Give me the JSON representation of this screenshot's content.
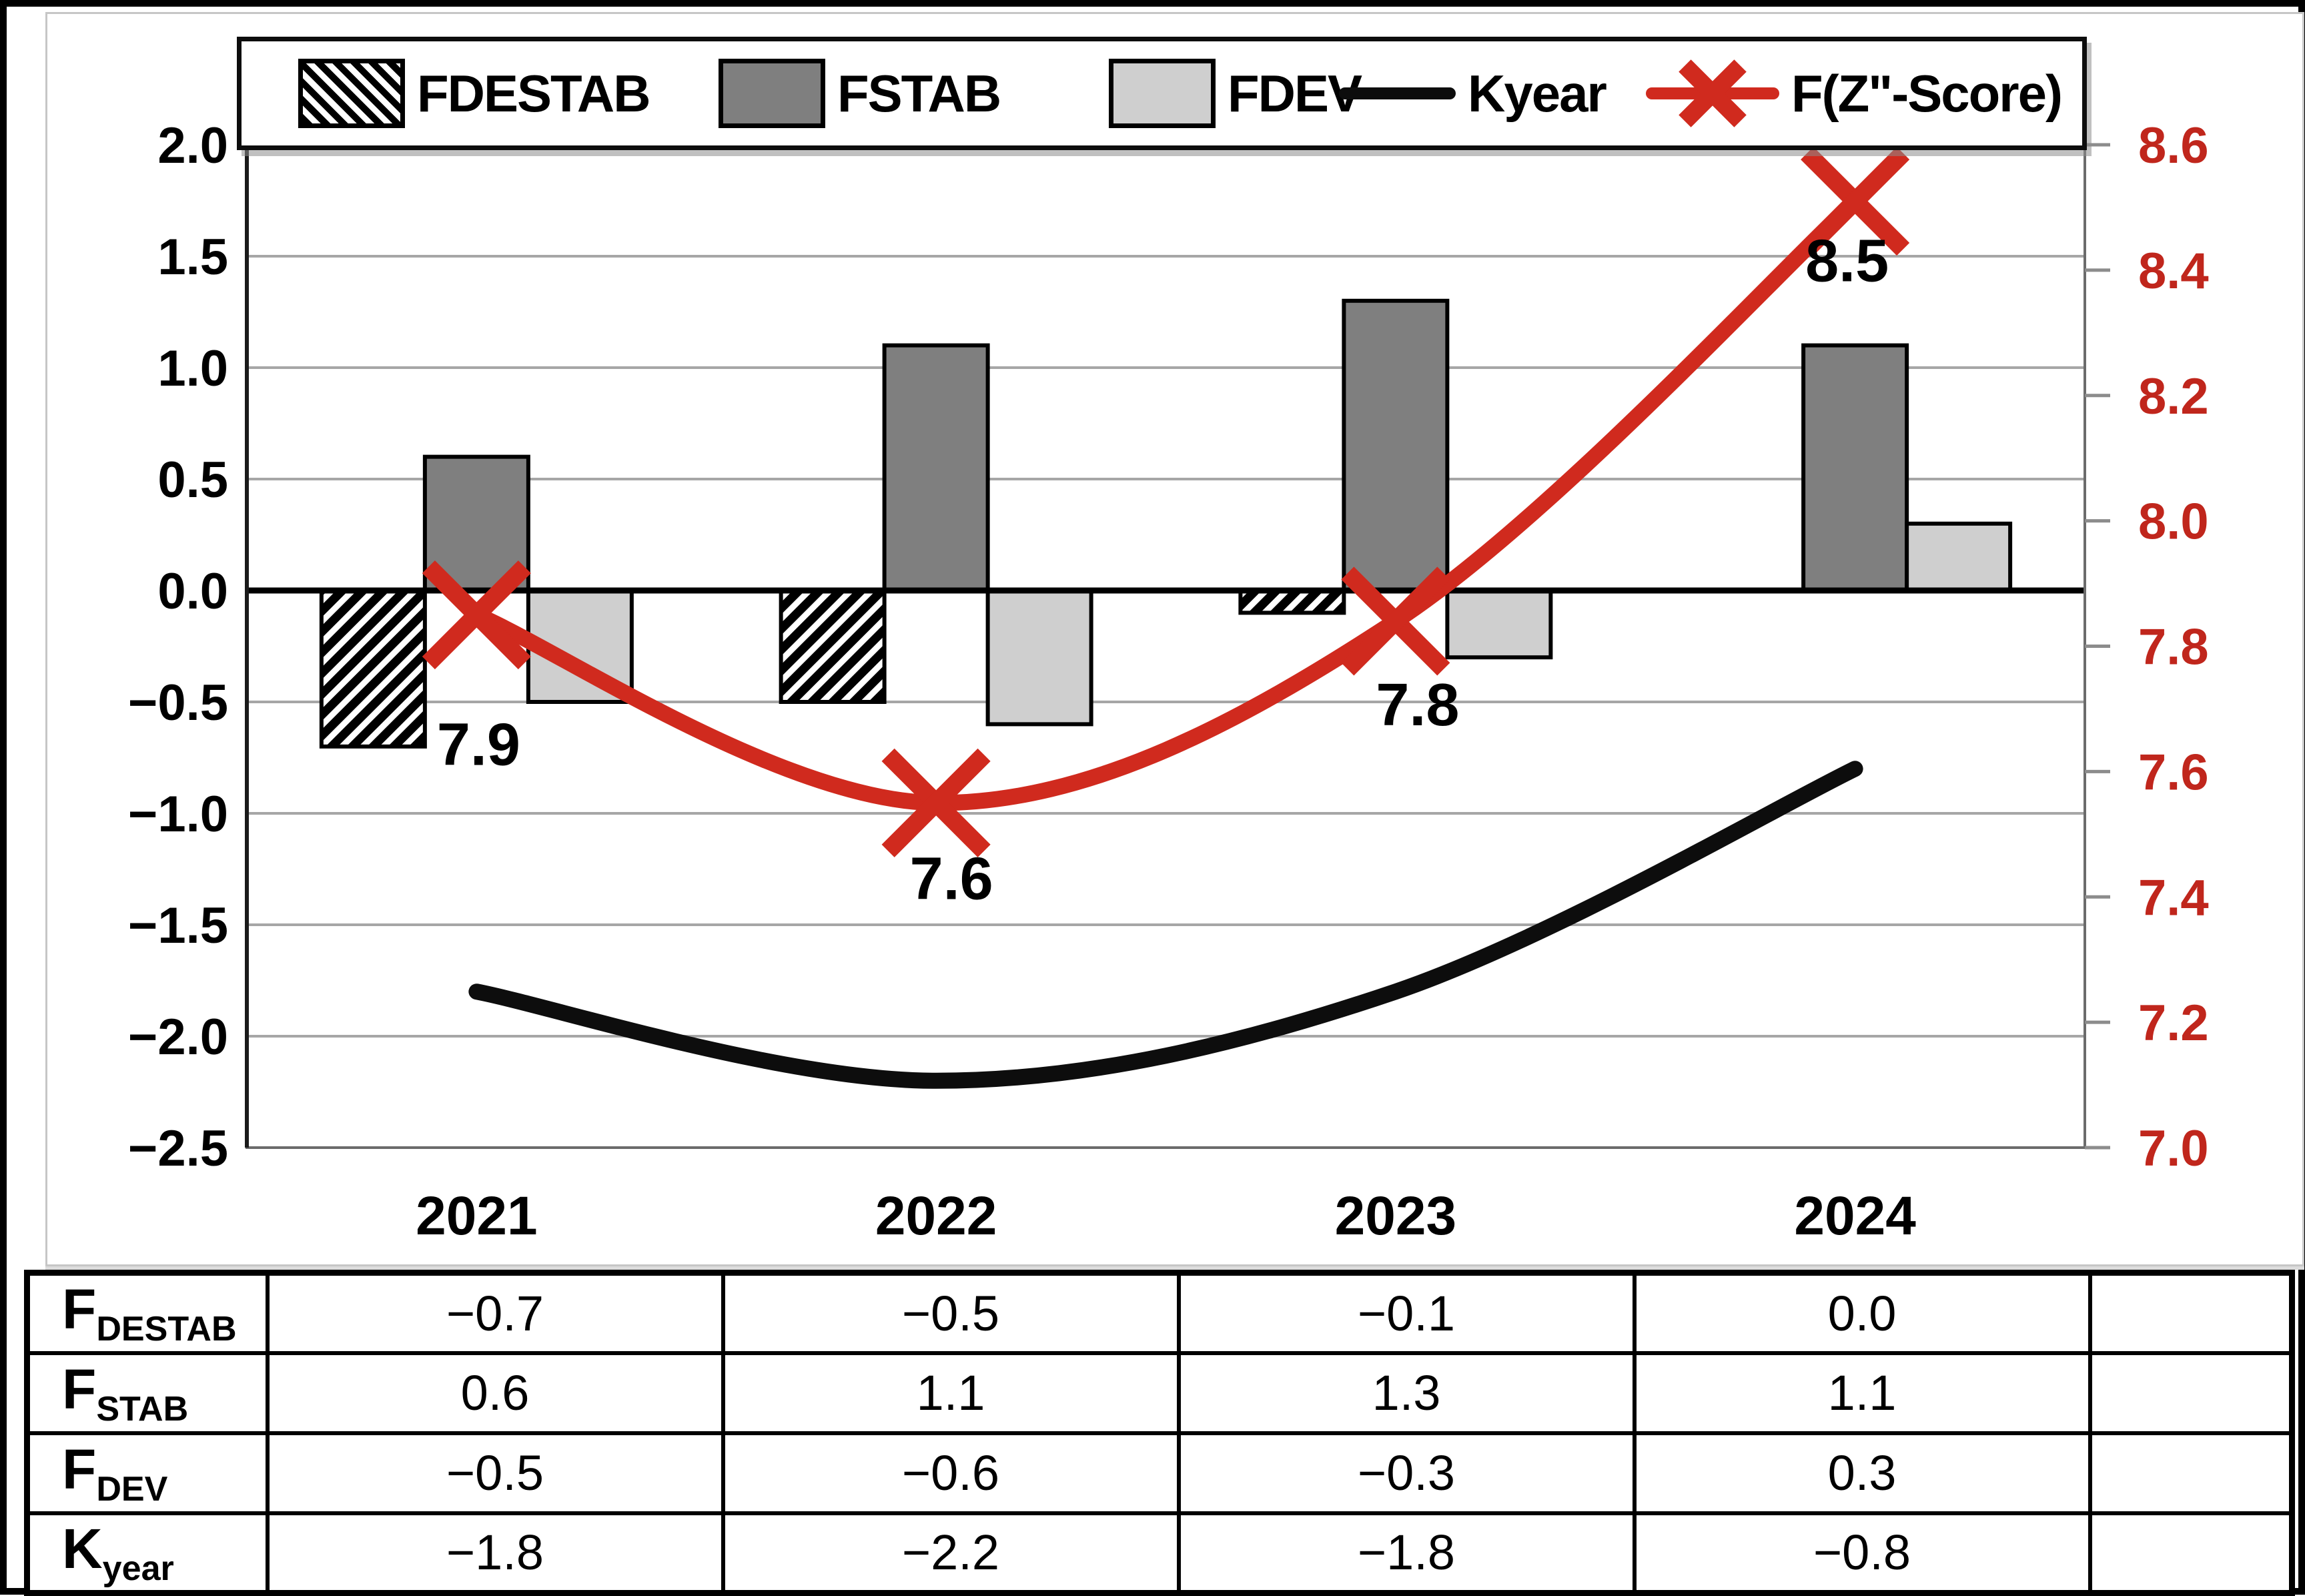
{
  "colors": {
    "accent_red": "#d02a1e",
    "right_axis_red": "#c0261c",
    "bar_dark_gray": "#7f7f7f",
    "bar_light_gray": "#cfcfcf",
    "black": "#0d0d0d",
    "gridline_gray": "#a6a6a6",
    "frame_gray": "#6b6b6b"
  },
  "legend": {
    "items": [
      {
        "label": "FDESTAB",
        "swatch": "hatch"
      },
      {
        "label": "FSTAB",
        "swatch": "dark"
      },
      {
        "label": "FDEV",
        "swatch": "light"
      },
      {
        "label": "Kyear",
        "swatch": "black-line"
      },
      {
        "label": "F(Z\"-Score)",
        "swatch": "red-line-x"
      }
    ]
  },
  "chart_data": {
    "type": "combo",
    "categories": [
      "2021",
      "2022",
      "2023",
      "2024"
    ],
    "bar_series": [
      {
        "name": "FDESTAB",
        "style": "diagonal-hatch",
        "axis": "left",
        "values": [
          -0.7,
          -0.5,
          -0.1,
          0.0
        ]
      },
      {
        "name": "FSTAB",
        "style": "dark-gray",
        "axis": "left",
        "values": [
          0.6,
          1.1,
          1.3,
          1.1
        ]
      },
      {
        "name": "FDEV",
        "style": "light-gray",
        "axis": "left",
        "values": [
          -0.5,
          -0.6,
          -0.3,
          0.3
        ]
      }
    ],
    "line_series": [
      {
        "name": "Kyear",
        "axis": "left",
        "style": "black-smooth",
        "marker": "none",
        "values": [
          -1.8,
          -2.2,
          -1.8,
          -0.8
        ]
      },
      {
        "name": "F(Z\"-Score)",
        "axis": "right",
        "style": "red-smooth",
        "marker": "x",
        "values": [
          7.9,
          7.6,
          7.8,
          8.5
        ],
        "plotted_values": [
          7.85,
          7.55,
          7.84,
          8.51
        ],
        "point_labels": [
          "7.9",
          "7.6",
          "7.8",
          "8.5"
        ]
      }
    ],
    "left_axis": {
      "min": -2.5,
      "max": 2.0,
      "tick_labels": [
        "2.0",
        "1.5",
        "1.0",
        "0.5",
        "0.0",
        "−0.5",
        "−1.0",
        "−1.5",
        "−2.0",
        "−2.5"
      ],
      "tick_values": [
        2.0,
        1.5,
        1.0,
        0.5,
        0.0,
        -0.5,
        -1.0,
        -1.5,
        -2.0,
        -2.5
      ]
    },
    "right_axis": {
      "min": 7.0,
      "max": 8.6,
      "tick_labels": [
        "8.6",
        "8.4",
        "8.2",
        "8.0",
        "7.8",
        "7.6",
        "7.4",
        "7.2",
        "7.0"
      ],
      "tick_values": [
        8.6,
        8.4,
        8.2,
        8.0,
        7.8,
        7.6,
        7.4,
        7.2,
        7.0
      ]
    },
    "grid": true,
    "legend_position": "top"
  },
  "table": {
    "rows": [
      {
        "label_base": "F",
        "label_sub": "DESTAB",
        "values": [
          "−0.7",
          "−0.5",
          "−0.1",
          "0.0"
        ]
      },
      {
        "label_base": "F",
        "label_sub": "STAB",
        "values": [
          "0.6",
          "1.1",
          "1.3",
          "1.1"
        ]
      },
      {
        "label_base": "F",
        "label_sub": "DEV",
        "values": [
          "−0.5",
          "−0.6",
          "−0.3",
          "0.3"
        ]
      },
      {
        "label_base": "K",
        "label_sub": "year",
        "values": [
          "−1.8",
          "−2.2",
          "−1.8",
          "−0.8"
        ]
      }
    ]
  }
}
